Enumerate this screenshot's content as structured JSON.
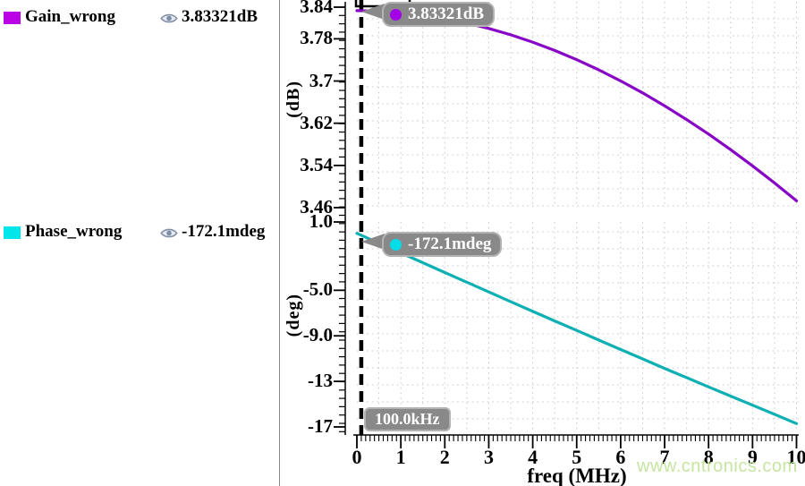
{
  "legend": {
    "items": [
      {
        "name": "Gain_wrong",
        "value": "3.83321dB",
        "swatch_color": "#bb04e6"
      },
      {
        "name": "Phase_wrong",
        "value": "-172.1mdeg",
        "swatch_color": "#00e6ea"
      }
    ]
  },
  "markers": {
    "gain_readout": "3.83321dB",
    "phase_readout": "-172.1mdeg",
    "freq_readout": "100.0kHz",
    "cursor_freq_mhz": 0.1,
    "gain_marker_db": 3.83321,
    "phase_marker_deg": -0.1721
  },
  "watermark": {
    "text": "www.cntronics.com",
    "color": "#c6e5a0"
  },
  "colors": {
    "gain_curve": "#8806c6",
    "gain_dot": "#a300e8",
    "phase_curve": "#0fb0b4",
    "phase_dot": "#00dce8",
    "tooltip_bg": "#898989",
    "grid": "#c9c9c9",
    "cursor": "#000000"
  },
  "chart_data": [
    {
      "type": "line",
      "title": "",
      "ylabel": "(dB)",
      "xlabel": "freq (MHz)",
      "xlim": [
        0,
        10
      ],
      "ylim": [
        3.46,
        3.84
      ],
      "grid": "dotted",
      "legend_position": "left-panel",
      "yticks": [
        {
          "label": "3.84",
          "value": 3.84
        },
        {
          "label": "3.78",
          "value": 3.78
        },
        {
          "label": "3.7",
          "value": 3.7
        },
        {
          "label": "3.62",
          "value": 3.62
        },
        {
          "label": "3.54",
          "value": 3.54
        },
        {
          "label": "3.46",
          "value": 3.46
        }
      ],
      "xticks": [
        {
          "label": "0",
          "value": 0
        },
        {
          "label": "1",
          "value": 1
        },
        {
          "label": "2",
          "value": 2
        },
        {
          "label": "3",
          "value": 3
        },
        {
          "label": "4",
          "value": 4
        },
        {
          "label": "5",
          "value": 5
        },
        {
          "label": "6",
          "value": 6
        },
        {
          "label": "7",
          "value": 7
        },
        {
          "label": "8",
          "value": 8
        },
        {
          "label": "9",
          "value": 9
        },
        {
          "label": "10",
          "value": 10
        }
      ],
      "series": [
        {
          "name": "Gain_wrong",
          "color": "#8806c6",
          "x": [
            0,
            0.5,
            1,
            1.5,
            2,
            2.5,
            3,
            3.5,
            4,
            4.5,
            5,
            5.5,
            6,
            6.5,
            7,
            7.5,
            8,
            8.5,
            9,
            9.5,
            10
          ],
          "y": [
            3.8333,
            3.8324,
            3.8295,
            3.8249,
            3.8183,
            3.8099,
            3.7996,
            3.7875,
            3.7736,
            3.7579,
            3.7404,
            3.7212,
            3.7002,
            3.6775,
            3.6531,
            3.627,
            3.5994,
            3.57,
            3.5392,
            3.5068,
            3.4729
          ]
        }
      ]
    },
    {
      "type": "line",
      "title": "",
      "ylabel": "(deg)",
      "xlabel": "freq (MHz)",
      "xlim": [
        0,
        10
      ],
      "ylim": [
        -17,
        1.0
      ],
      "grid": "dotted",
      "legend_position": "left-panel",
      "yticks": [
        {
          "label": "1.0",
          "value": 1.0
        },
        {
          "label": "-5.0",
          "value": -5.0
        },
        {
          "label": "-9.0",
          "value": -9.0
        },
        {
          "label": "-13",
          "value": -13
        },
        {
          "label": "-17",
          "value": -17
        }
      ],
      "xticks": [
        {
          "label": "0",
          "value": 0
        },
        {
          "label": "1",
          "value": 1
        },
        {
          "label": "2",
          "value": 2
        },
        {
          "label": "3",
          "value": 3
        },
        {
          "label": "4",
          "value": 4
        },
        {
          "label": "5",
          "value": 5
        },
        {
          "label": "6",
          "value": 6
        },
        {
          "label": "7",
          "value": 7
        },
        {
          "label": "8",
          "value": 8
        },
        {
          "label": "9",
          "value": 9
        },
        {
          "label": "10",
          "value": 10
        }
      ],
      "series": [
        {
          "name": "Phase_wrong",
          "color": "#0fb0b4",
          "x": [
            0,
            0.5,
            1,
            1.5,
            2,
            2.5,
            3,
            3.5,
            4,
            4.5,
            5,
            5.5,
            6,
            6.5,
            7,
            7.5,
            8,
            8.5,
            9,
            9.5,
            10
          ],
          "y": [
            0,
            -0.86,
            -1.72,
            -2.58,
            -3.44,
            -4.29,
            -5.15,
            -6.0,
            -6.85,
            -7.69,
            -8.53,
            -9.37,
            -10.2,
            -11.03,
            -11.86,
            -12.67,
            -13.49,
            -14.29,
            -15.09,
            -15.89,
            -16.71
          ]
        }
      ]
    }
  ]
}
